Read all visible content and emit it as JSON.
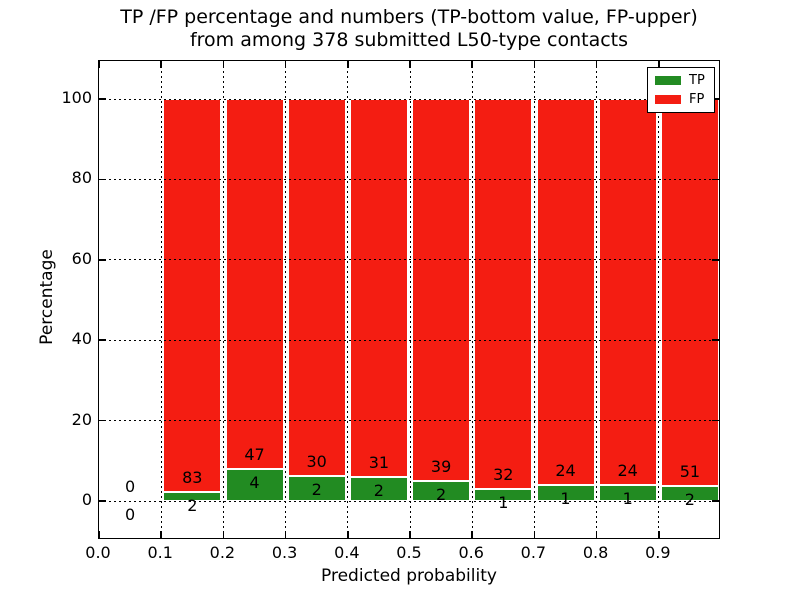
{
  "title": {
    "line1": "TP /FP percentage and numbers (TP-bottom value, FP-upper)",
    "line2": "from among 378 submitted L50-type contacts"
  },
  "axes": {
    "xlabel": "Predicted probability",
    "ylabel": "Percentage"
  },
  "legend": {
    "position": "upper right",
    "items": [
      {
        "label": "TP",
        "color": "#228b22"
      },
      {
        "label": "FP",
        "color": "#f41d12"
      }
    ]
  },
  "colors": {
    "tp_green": "#228b22",
    "fp_red": "#f41d12",
    "axis_black": "#000000",
    "background": "#ffffff",
    "bar_edge": "#ffffff"
  },
  "chart_data": {
    "type": "bar",
    "stacked": true,
    "normalized": "each bin scaled to 100%",
    "title": "TP /FP percentage and numbers (TP-bottom value, FP-upper) from among 378 submitted L50-type contacts",
    "xlabel": "Predicted probability",
    "ylabel": "Percentage",
    "total_contacts": 378,
    "grid": true,
    "legend_position": "upper right",
    "xlim": [
      0.0,
      1.0
    ],
    "bin_edges": [
      0.0,
      0.1,
      0.2,
      0.3,
      0.4,
      0.5,
      0.6,
      0.7,
      0.8,
      0.9,
      1.0
    ],
    "bin_centers": [
      0.05,
      0.15,
      0.25,
      0.35,
      0.45,
      0.55,
      0.65,
      0.75,
      0.85,
      0.95
    ],
    "series": [
      {
        "name": "TP",
        "color": "#228b22",
        "counts": [
          0,
          2,
          4,
          2,
          2,
          2,
          1,
          1,
          1,
          2
        ]
      },
      {
        "name": "FP",
        "color": "#f41d12",
        "counts": [
          0,
          83,
          47,
          30,
          31,
          39,
          32,
          24,
          24,
          51
        ]
      }
    ],
    "xticks": [
      "0.0",
      "0.1",
      "0.2",
      "0.3",
      "0.4",
      "0.5",
      "0.6",
      "0.7",
      "0.8",
      "0.9"
    ],
    "xtick_values": [
      0.0,
      0.1,
      0.2,
      0.3,
      0.4,
      0.5,
      0.6,
      0.7,
      0.8,
      0.9
    ],
    "yticks": [
      0,
      20,
      40,
      60,
      80,
      100
    ]
  }
}
